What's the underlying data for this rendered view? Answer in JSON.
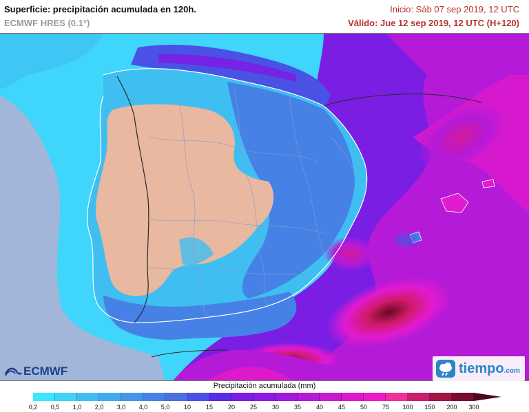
{
  "header": {
    "title": "Superficie: precipitación acumulada en 120h.",
    "subtitle": "ECMWF HRES (0.1°)",
    "init": "Inicio: Sáb 07 sep 2019, 12 UTC",
    "valid": "Válido: Jue 12 sep 2019, 12 UTC (H+120)"
  },
  "logos": {
    "ecmwf": "ECMWF",
    "tiempo_main": "tiempo",
    "tiempo_suffix": ".com"
  },
  "map": {
    "land_dry_color": "#e8b8a0",
    "sea_color": "#a8b4d8",
    "low_precip_color": "#40dcff"
  },
  "legend": {
    "title": "Precipitación acumulada (mm)",
    "labels": [
      "0,2",
      "0,5",
      "1,0",
      "2,0",
      "3,0",
      "4,0",
      "5,0",
      "10",
      "15",
      "20",
      "25",
      "30",
      "35",
      "40",
      "45",
      "50",
      "75",
      "100",
      "150",
      "200",
      "300"
    ],
    "colors": [
      "#3ee6fa",
      "#3fd2f6",
      "#40bef2",
      "#42aaee",
      "#4496ea",
      "#4682e6",
      "#4b6ee2",
      "#4a52e6",
      "#5a2ae8",
      "#7a1ee4",
      "#8c1ae0",
      "#a01adc",
      "#b41ad8",
      "#c81ad2",
      "#dc1acc",
      "#ee1ac6",
      "#ee2f9c",
      "#c8206a",
      "#a01448",
      "#7a0c2c",
      "#50061c"
    ]
  }
}
